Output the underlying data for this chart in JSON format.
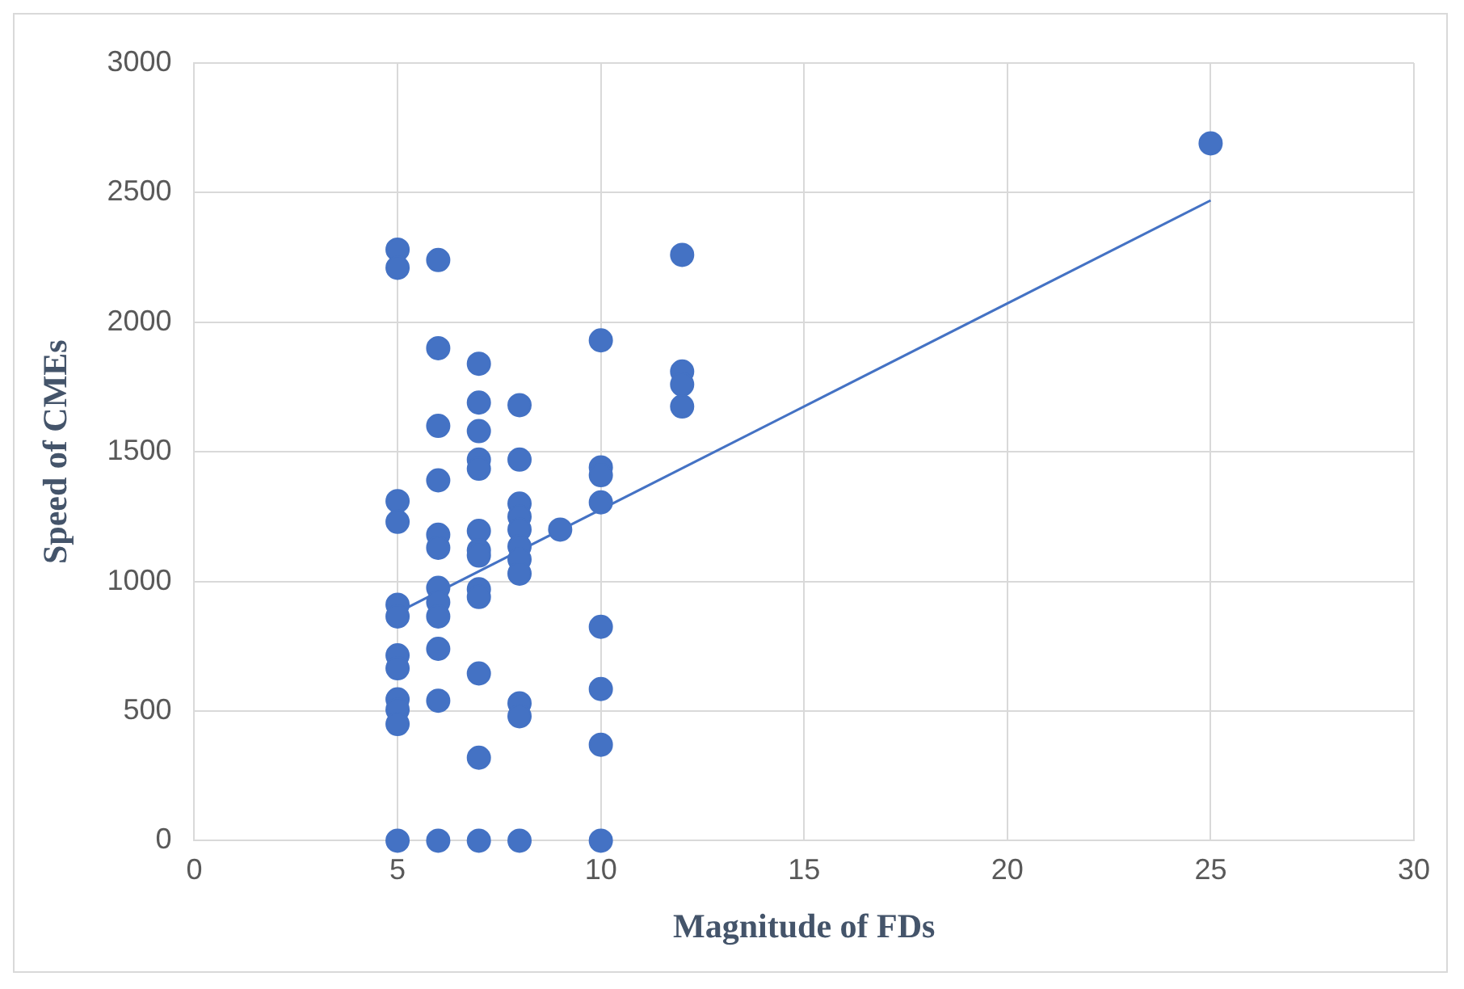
{
  "chart_data": {
    "type": "scatter",
    "xlabel": "Magnitude of FDs",
    "ylabel": "Speed of CMEs",
    "xlim": [
      0,
      30
    ],
    "xticks": [
      0,
      5,
      10,
      15,
      20,
      25,
      30
    ],
    "ylim": [
      0,
      3000
    ],
    "yticks": [
      0,
      500,
      1000,
      1500,
      2000,
      2500,
      3000
    ],
    "grid": true,
    "marker": "circle",
    "legend": false,
    "series": [
      {
        "color": "#4472c4",
        "x": [
          5,
          5,
          5,
          5,
          5,
          5,
          5,
          5,
          5,
          5,
          5,
          5,
          6,
          6,
          6,
          6,
          6,
          6,
          6,
          6,
          6,
          6,
          6,
          6,
          7,
          7,
          7,
          7,
          7,
          7,
          7,
          7,
          7,
          7,
          7,
          7,
          7,
          8,
          8,
          8,
          8,
          8,
          8,
          8,
          8,
          8,
          8,
          8,
          9,
          10,
          10,
          10,
          10,
          10,
          10,
          10,
          10,
          12,
          12,
          12,
          12,
          25
        ],
        "values": [
          2280,
          2210,
          1310,
          1230,
          910,
          865,
          715,
          665,
          545,
          505,
          450,
          0,
          2240,
          1900,
          1600,
          1390,
          1180,
          1130,
          975,
          920,
          865,
          740,
          540,
          0,
          1840,
          1690,
          1580,
          1470,
          1435,
          1195,
          1120,
          1100,
          970,
          940,
          645,
          320,
          0,
          1680,
          1470,
          1300,
          1250,
          1200,
          1135,
          1085,
          1030,
          530,
          480,
          0,
          1200,
          1930,
          1440,
          1410,
          1305,
          825,
          585,
          370,
          0,
          2260,
          1810,
          1760,
          1675,
          2690
        ]
      },
      {
        "type": "line",
        "color": "#4472c4",
        "x": [
          5,
          25
        ],
        "values": [
          880,
          2470
        ],
        "marker": "none"
      }
    ]
  }
}
